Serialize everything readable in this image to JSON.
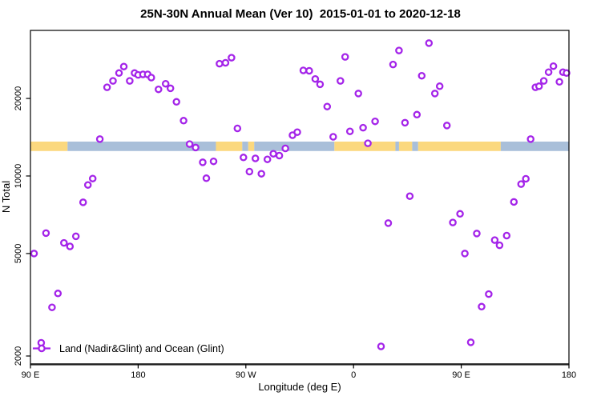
{
  "title": "25N-30N Annual Mean (Ver 10)  2015-01-01 to 2020-12-18",
  "chart_data": {
    "type": "scatter",
    "title": "25N-30N Annual Mean (Ver 10)  2015-01-01 to 2020-12-18",
    "xlabel": "Longitude (deg E)",
    "ylabel": "N Total",
    "x_note": "x values are degrees along a wrapped longitude axis: 90E..180..270(=90W)..360(=0)..450(=90E)..540(=180)",
    "x_axis_range_deg": [
      90,
      540
    ],
    "y_scale": "log",
    "ylim": [
      1862,
      36750
    ],
    "grid": "off",
    "x_ticks": [
      {
        "deg": 90,
        "label": "90 E"
      },
      {
        "deg": 180,
        "label": "180"
      },
      {
        "deg": 270,
        "label": "90 W"
      },
      {
        "deg": 360,
        "label": "0"
      },
      {
        "deg": 450,
        "label": "90 E"
      },
      {
        "deg": 540,
        "label": "180"
      }
    ],
    "y_ticks": [
      {
        "value": 2000,
        "label": "2000"
      },
      {
        "value": 5000,
        "label": "5000"
      },
      {
        "value": 10000,
        "label": "10000"
      },
      {
        "value": 20000,
        "label": "20000"
      }
    ],
    "legend": {
      "label": "Land (Nadir&Glint) and Ocean (Glint)",
      "position": "bottom-left"
    },
    "colors": {
      "point": "#A424E9",
      "land": "#FBD87E",
      "ocean": "#A9BFD9",
      "box": "#000000",
      "x_axis_line": "#4D4D4D"
    },
    "map_band": {
      "value_top": 13600,
      "value_bottom": 12500,
      "segments": [
        {
          "from": 90,
          "to": 121,
          "surface": "land"
        },
        {
          "from": 121,
          "to": 245,
          "surface": "ocean"
        },
        {
          "from": 245,
          "to": 267,
          "surface": "land"
        },
        {
          "from": 267,
          "to": 272,
          "surface": "ocean"
        },
        {
          "from": 272,
          "to": 277,
          "surface": "land"
        },
        {
          "from": 277,
          "to": 344,
          "surface": "ocean"
        },
        {
          "from": 344,
          "to": 395,
          "surface": "land"
        },
        {
          "from": 395,
          "to": 398,
          "surface": "ocean"
        },
        {
          "from": 398,
          "to": 409,
          "surface": "land"
        },
        {
          "from": 409,
          "to": 414,
          "surface": "ocean"
        },
        {
          "from": 414,
          "to": 483,
          "surface": "land"
        },
        {
          "from": 483,
          "to": 540,
          "surface": "ocean"
        }
      ]
    },
    "points": [
      [
        93,
        5000
      ],
      [
        99,
        2250
      ],
      [
        103,
        6000
      ],
      [
        108,
        3090
      ],
      [
        113,
        3500
      ],
      [
        118,
        5500
      ],
      [
        123,
        5330
      ],
      [
        128,
        5830
      ],
      [
        134,
        7900
      ],
      [
        138,
        9230
      ],
      [
        142,
        9770
      ],
      [
        148,
        13900
      ],
      [
        154,
        22100
      ],
      [
        159,
        23400
      ],
      [
        164,
        25100
      ],
      [
        168,
        26600
      ],
      [
        173,
        23400
      ],
      [
        177,
        25100
      ],
      [
        180,
        24700
      ],
      [
        184,
        24800
      ],
      [
        188,
        24800
      ],
      [
        191,
        24100
      ],
      [
        197,
        21700
      ],
      [
        203,
        22800
      ],
      [
        207,
        21900
      ],
      [
        212,
        19400
      ],
      [
        218,
        16400
      ],
      [
        223,
        13300
      ],
      [
        228,
        12900
      ],
      [
        234,
        11300
      ],
      [
        237,
        9800
      ],
      [
        243,
        11400
      ],
      [
        248,
        27300
      ],
      [
        253,
        27500
      ],
      [
        258,
        28800
      ],
      [
        263,
        15300
      ],
      [
        268,
        11800
      ],
      [
        273,
        10400
      ],
      [
        278,
        11700
      ],
      [
        283,
        10200
      ],
      [
        288,
        11600
      ],
      [
        293,
        12200
      ],
      [
        298,
        12000
      ],
      [
        303,
        12800
      ],
      [
        309,
        14400
      ],
      [
        313,
        14800
      ],
      [
        318,
        25700
      ],
      [
        323,
        25600
      ],
      [
        328,
        23800
      ],
      [
        332,
        22700
      ],
      [
        338,
        18600
      ],
      [
        343,
        14200
      ],
      [
        349,
        23400
      ],
      [
        353,
        29000
      ],
      [
        357,
        14900
      ],
      [
        364,
        20900
      ],
      [
        368,
        15400
      ],
      [
        372,
        13400
      ],
      [
        378,
        16300
      ],
      [
        383,
        2180
      ],
      [
        389,
        6560
      ],
      [
        393,
        27100
      ],
      [
        398,
        30700
      ],
      [
        403,
        16100
      ],
      [
        407,
        8350
      ],
      [
        413,
        17300
      ],
      [
        417,
        24500
      ],
      [
        423,
        32800
      ],
      [
        428,
        20900
      ],
      [
        432,
        22300
      ],
      [
        438,
        15700
      ],
      [
        443,
        6600
      ],
      [
        449,
        7130
      ],
      [
        453,
        5000
      ],
      [
        458,
        2260
      ],
      [
        463,
        5980
      ],
      [
        467,
        3110
      ],
      [
        473,
        3480
      ],
      [
        478,
        5640
      ],
      [
        482,
        5380
      ],
      [
        488,
        5870
      ],
      [
        494,
        7930
      ],
      [
        500,
        9300
      ],
      [
        504,
        9750
      ],
      [
        508,
        13900
      ],
      [
        512,
        22100
      ],
      [
        515,
        22300
      ],
      [
        519,
        23400
      ],
      [
        523,
        25300
      ],
      [
        527,
        26700
      ],
      [
        532,
        23200
      ],
      [
        535,
        25300
      ],
      [
        538,
        25100
      ]
    ]
  }
}
